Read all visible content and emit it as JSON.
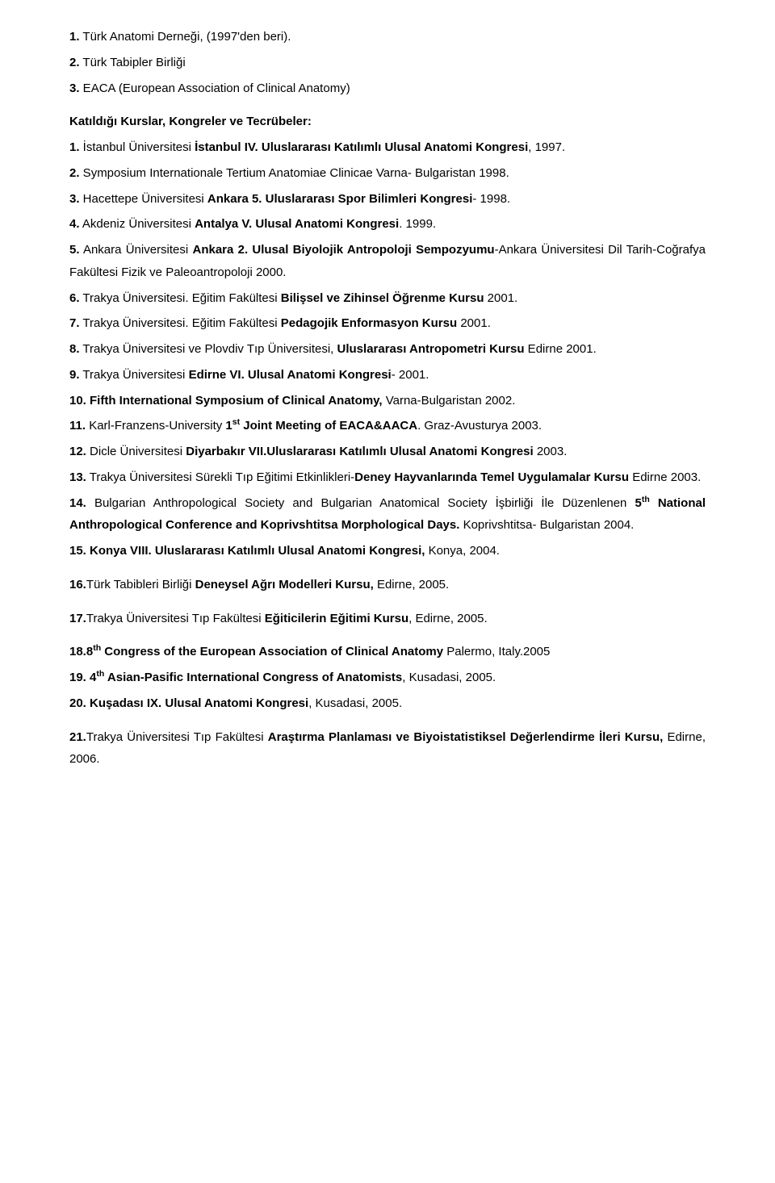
{
  "memberships": [
    {
      "num": "1.",
      "text": " Türk Anatomi Derneği, (1997'den beri)."
    },
    {
      "num": "2.",
      "text": " Türk Tabipler Birliği"
    },
    {
      "num": "3.",
      "text": " EACA (European Association of Clinical Anatomy)"
    }
  ],
  "section_heading": "Katıldığı Kurslar, Kongreler ve Tecrübeler:",
  "items": [
    {
      "parts": [
        {
          "b": true,
          "t": "1."
        },
        {
          "b": false,
          "t": " İstanbul Üniversitesi "
        },
        {
          "b": true,
          "t": "İstanbul IV. Uluslararası Katılımlı Ulusal Anatomi Kongresi"
        },
        {
          "b": false,
          "t": ", 1997."
        }
      ]
    },
    {
      "parts": [
        {
          "b": true,
          "t": "2."
        },
        {
          "b": false,
          "t": " Symposium Internationale Tertium Anatomiae Clinicae Varna- Bulgaristan 1998."
        }
      ]
    },
    {
      "parts": [
        {
          "b": true,
          "t": "3."
        },
        {
          "b": false,
          "t": " Hacettepe Üniversitesi "
        },
        {
          "b": true,
          "t": "Ankara 5. Uluslararası Spor Bilimleri Kongresi"
        },
        {
          "b": false,
          "t": "- 1998."
        }
      ]
    },
    {
      "parts": [
        {
          "b": true,
          "t": "4."
        },
        {
          "b": false,
          "t": " Akdeniz Üniversitesi "
        },
        {
          "b": true,
          "t": "Antalya V. Ulusal Anatomi Kongresi"
        },
        {
          "b": false,
          "t": ". 1999."
        }
      ]
    },
    {
      "parts": [
        {
          "b": true,
          "t": "5."
        },
        {
          "b": false,
          "t": " Ankara Üniversitesi "
        },
        {
          "b": true,
          "t": "Ankara 2. Ulusal Biyolojik Antropoloji Sempozyumu"
        },
        {
          "b": false,
          "t": "-Ankara Üniversitesi Dil Tarih-Coğrafya Fakültesi Fizik ve Paleoantropoloji 2000."
        }
      ]
    },
    {
      "parts": [
        {
          "b": true,
          "t": "6."
        },
        {
          "b": false,
          "t": " Trakya Üniversitesi. Eğitim Fakültesi "
        },
        {
          "b": true,
          "t": "Bilişsel ve Zihinsel Öğrenme Kursu"
        },
        {
          "b": false,
          "t": " 2001."
        }
      ]
    },
    {
      "parts": [
        {
          "b": true,
          "t": "7."
        },
        {
          "b": false,
          "t": " Trakya Üniversitesi. Eğitim Fakültesi "
        },
        {
          "b": true,
          "t": "Pedagojik Enformasyon Kursu"
        },
        {
          "b": false,
          "t": " 2001."
        }
      ]
    },
    {
      "parts": [
        {
          "b": true,
          "t": "8."
        },
        {
          "b": false,
          "t": " Trakya Üniversitesi ve Plovdiv Tıp Üniversitesi, "
        },
        {
          "b": true,
          "t": "Uluslararası Antropometri Kursu"
        },
        {
          "b": false,
          "t": " Edirne 2001."
        }
      ]
    },
    {
      "parts": [
        {
          "b": true,
          "t": "9."
        },
        {
          "b": false,
          "t": " Trakya Üniversitesi "
        },
        {
          "b": true,
          "t": "Edirne VI. Ulusal Anatomi Kongresi"
        },
        {
          "b": false,
          "t": "- 2001."
        }
      ]
    },
    {
      "parts": [
        {
          "b": true,
          "t": "10. Fifth International Symposium of Clinical Anatomy,"
        },
        {
          "b": false,
          "t": " Varna-Bulgaristan 2002."
        }
      ]
    },
    {
      "parts": [
        {
          "b": true,
          "t": "11."
        },
        {
          "b": false,
          "t": " Karl-Franzens-University "
        },
        {
          "b": true,
          "t": "1"
        },
        {
          "b": true,
          "t": "st",
          "sup": true
        },
        {
          "b": true,
          "t": " Joint Meeting of EACA&AACA"
        },
        {
          "b": false,
          "t": ". Graz-Avusturya 2003."
        }
      ]
    },
    {
      "parts": [
        {
          "b": true,
          "t": "12."
        },
        {
          "b": false,
          "t": " Dicle Üniversitesi "
        },
        {
          "b": true,
          "t": "Diyarbakır VII.Uluslararası Katılımlı Ulusal Anatomi Kongresi"
        },
        {
          "b": false,
          "t": " 2003."
        }
      ]
    },
    {
      "parts": [
        {
          "b": true,
          "t": "13."
        },
        {
          "b": false,
          "t": " Trakya Üniversitesi Sürekli Tıp Eğitimi Etkinlikleri-"
        },
        {
          "b": true,
          "t": "Deney Hayvanlarında Temel Uygulamalar Kursu"
        },
        {
          "b": false,
          "t": " Edirne 2003."
        }
      ]
    },
    {
      "parts": [
        {
          "b": true,
          "t": "14."
        },
        {
          "b": false,
          "t": " Bulgarian Anthropological Society and Bulgarian Anatomical Society İşbirliği İle Düzenlenen "
        },
        {
          "b": true,
          "t": "5"
        },
        {
          "b": true,
          "t": "th",
          "sup": true
        },
        {
          "b": true,
          "t": " National Anthropological Conference and Koprivshtitsa Morphological Days."
        },
        {
          "b": false,
          "t": " Koprivshtitsa- Bulgaristan 2004."
        }
      ]
    },
    {
      "parts": [
        {
          "b": true,
          "t": "15. Konya VIII. Uluslararası Katılımlı Ulusal Anatomi Kongresi,"
        },
        {
          "b": false,
          "t": " Konya, 2004."
        }
      ]
    },
    {
      "gap": true,
      "parts": [
        {
          "b": true,
          "t": "16."
        },
        {
          "b": false,
          "t": "Türk Tabibleri Birliği "
        },
        {
          "b": true,
          "t": "Deneysel Ağrı Modelleri Kursu,"
        },
        {
          "b": false,
          "t": " Edirne, 2005."
        }
      ]
    },
    {
      "gap": true,
      "parts": [
        {
          "b": true,
          "t": "17."
        },
        {
          "b": false,
          "t": "Trakya Üniversitesi Tıp Fakültesi "
        },
        {
          "b": true,
          "t": "Eğiticilerin Eğitimi Kursu"
        },
        {
          "b": false,
          "t": ", Edirne, 2005."
        }
      ]
    },
    {
      "gap": true,
      "parts": [
        {
          "b": true,
          "t": "18."
        },
        {
          "b": false,
          "t": "8",
          "postb": true
        },
        {
          "b": true,
          "t": "th",
          "sup": true
        },
        {
          "b": true,
          "t": " Congress of the European Association of Clinical Anatomy"
        },
        {
          "b": false,
          "t": " Palermo, Italy.2005"
        }
      ]
    },
    {
      "parts": [
        {
          "b": true,
          "t": "19."
        },
        {
          "b": false,
          "t": " "
        },
        {
          "b": true,
          "t": "4"
        },
        {
          "b": true,
          "t": "th",
          "sup": true
        },
        {
          "b": true,
          "t": " Asian-Pasific International Congress of Anatomists"
        },
        {
          "b": false,
          "t": ", Kusadasi, 2005."
        }
      ]
    },
    {
      "parts": [
        {
          "b": true,
          "t": "20. Kuşadası IX. Ulusal Anatomi Kongresi"
        },
        {
          "b": false,
          "t": ", Kusadasi, 2005."
        }
      ]
    },
    {
      "gap": true,
      "parts": [
        {
          "b": true,
          "t": "21."
        },
        {
          "b": false,
          "t": "Trakya Üniversitesi Tıp Fakültesi "
        },
        {
          "b": true,
          "t": "Araştırma Planlaması ve Biyoistatistiksel Değerlendirme İleri Kursu,"
        },
        {
          "b": false,
          "t": " Edirne, 2006."
        }
      ]
    }
  ]
}
